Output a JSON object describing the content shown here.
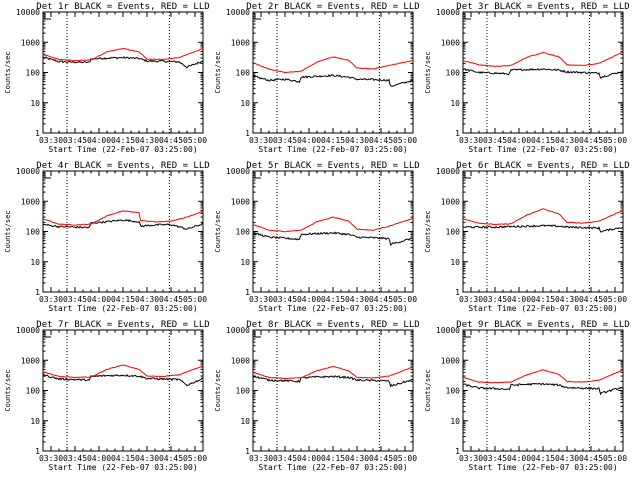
{
  "figure": {
    "background": "#ffffff"
  },
  "chart_data": {
    "type": "line",
    "scale_y": "log",
    "ylim": [
      1,
      10000
    ],
    "yticks": [
      1,
      10,
      100,
      1000,
      10000
    ],
    "ytick_labels": [
      "1",
      "10",
      "100",
      "1000",
      "10000"
    ],
    "xlim": [
      "03:25",
      "05:05"
    ],
    "xticks": [
      "03:30",
      "03:45",
      "04:00",
      "04:15",
      "04:30",
      "04:45",
      "05:00"
    ],
    "xlabel": "Start Time (22-Feb-07 03:25:00)",
    "ylabel": "Counts/sec",
    "vlines": [
      "03:40",
      "04:44"
    ],
    "grid": false,
    "legend_position": "none",
    "series_colors": {
      "events": "#000000",
      "lld": "#ff0000"
    },
    "panels": [
      {
        "title": "Det 1r BLACK = Events, RED = LLD",
        "series": [
          {
            "key": "events",
            "x": [
              "03:25",
              "03:35",
              "03:45",
              "03:54",
              "03:55",
              "04:05",
              "04:15",
              "04:25",
              "04:30",
              "04:40",
              "04:50",
              "04:55",
              "05:05"
            ],
            "y": [
              320,
              230,
              220,
              215,
              280,
              300,
              310,
              290,
              240,
              235,
              225,
              150,
              240
            ]
          },
          {
            "key": "lld",
            "x": [
              "03:25",
              "03:35",
              "03:45",
              "03:55",
              "04:05",
              "04:15",
              "04:25",
              "04:30",
              "04:40",
              "04:50",
              "05:05"
            ],
            "y": [
              400,
              270,
              250,
              260,
              480,
              620,
              480,
              280,
              270,
              310,
              620
            ]
          }
        ]
      },
      {
        "title": "Det 2r BLACK = Events, RED = LLD",
        "series": [
          {
            "key": "events",
            "x": [
              "03:25",
              "03:35",
              "03:45",
              "03:54",
              "03:55",
              "04:05",
              "04:15",
              "04:25",
              "04:30",
              "04:40",
              "04:50",
              "04:51",
              "05:05"
            ],
            "y": [
              75,
              55,
              60,
              50,
              70,
              75,
              80,
              70,
              60,
              58,
              55,
              35,
              55
            ]
          },
          {
            "key": "lld",
            "x": [
              "03:25",
              "03:35",
              "03:45",
              "03:55",
              "04:05",
              "04:15",
              "04:25",
              "04:30",
              "04:40",
              "04:50",
              "05:05"
            ],
            "y": [
              210,
              130,
              100,
              110,
              220,
              330,
              250,
              140,
              130,
              170,
              250
            ]
          }
        ]
      },
      {
        "title": "Det 3r BLACK = Events, RED = LLD",
        "series": [
          {
            "key": "events",
            "x": [
              "03:25",
              "03:35",
              "03:45",
              "03:54",
              "03:55",
              "04:05",
              "04:15",
              "04:25",
              "04:30",
              "04:40",
              "04:50",
              "04:51",
              "05:05"
            ],
            "y": [
              130,
              100,
              95,
              90,
              120,
              125,
              130,
              120,
              105,
              100,
              95,
              70,
              110
            ]
          },
          {
            "key": "lld",
            "x": [
              "03:25",
              "03:35",
              "03:45",
              "03:55",
              "04:05",
              "04:15",
              "04:25",
              "04:30",
              "04:40",
              "04:50",
              "05:05"
            ],
            "y": [
              250,
              180,
              160,
              170,
              320,
              460,
              330,
              180,
              170,
              200,
              480
            ]
          }
        ]
      },
      {
        "title": "Det 4r BLACK = Events, RED = LLD",
        "series": [
          {
            "key": "events",
            "x": [
              "03:25",
              "03:35",
              "03:45",
              "03:54",
              "03:55",
              "04:05",
              "04:15",
              "04:25",
              "04:26",
              "04:35",
              "04:45",
              "04:55",
              "05:05"
            ],
            "y": [
              170,
              145,
              140,
              135,
              190,
              210,
              240,
              210,
              150,
              165,
              170,
              120,
              180
            ]
          },
          {
            "key": "lld",
            "x": [
              "03:25",
              "03:35",
              "03:45",
              "03:55",
              "04:05",
              "04:15",
              "04:25",
              "04:26",
              "04:35",
              "04:45",
              "04:55",
              "05:05"
            ],
            "y": [
              260,
              175,
              165,
              175,
              330,
              480,
              420,
              230,
              210,
              220,
              300,
              470
            ]
          }
        ]
      },
      {
        "title": "Det 5r BLACK = Events, RED = LLD",
        "series": [
          {
            "key": "events",
            "x": [
              "03:25",
              "03:35",
              "03:45",
              "03:54",
              "03:55",
              "04:05",
              "04:15",
              "04:25",
              "04:30",
              "04:40",
              "04:50",
              "04:51",
              "05:05"
            ],
            "y": [
              90,
              65,
              60,
              55,
              80,
              85,
              90,
              80,
              65,
              62,
              58,
              38,
              60
            ]
          },
          {
            "key": "lld",
            "x": [
              "03:25",
              "03:35",
              "03:45",
              "03:55",
              "04:05",
              "04:15",
              "04:25",
              "04:30",
              "04:40",
              "04:50",
              "05:05"
            ],
            "y": [
              170,
              110,
              100,
              110,
              210,
              300,
              220,
              120,
              110,
              150,
              270
            ]
          }
        ]
      },
      {
        "title": "Det 6r BLACK = Events, RED = LLD",
        "series": [
          {
            "key": "events",
            "x": [
              "03:25",
              "03:35",
              "03:45",
              "03:55",
              "04:05",
              "04:15",
              "04:25",
              "04:30",
              "04:40",
              "04:50",
              "04:51",
              "05:05"
            ],
            "y": [
              140,
              140,
              140,
              145,
              150,
              155,
              150,
              140,
              135,
              130,
              100,
              140
            ]
          },
          {
            "key": "lld",
            "x": [
              "03:25",
              "03:35",
              "03:45",
              "03:55",
              "04:05",
              "04:15",
              "04:25",
              "04:30",
              "04:40",
              "04:50",
              "05:05"
            ],
            "y": [
              260,
              190,
              170,
              180,
              350,
              560,
              380,
              200,
              190,
              220,
              500
            ]
          }
        ]
      },
      {
        "title": "Det 7r BLACK = Events, RED = LLD",
        "series": [
          {
            "key": "events",
            "x": [
              "03:25",
              "03:35",
              "03:45",
              "03:54",
              "03:55",
              "04:05",
              "04:15",
              "04:25",
              "04:30",
              "04:40",
              "04:50",
              "04:55",
              "05:05"
            ],
            "y": [
              330,
              240,
              230,
              220,
              290,
              310,
              320,
              300,
              250,
              240,
              230,
              150,
              250
            ]
          },
          {
            "key": "lld",
            "x": [
              "03:25",
              "03:35",
              "03:45",
              "03:55",
              "04:05",
              "04:15",
              "04:25",
              "04:30",
              "04:40",
              "04:50",
              "05:05"
            ],
            "y": [
              420,
              290,
              270,
              280,
              500,
              700,
              500,
              300,
              290,
              330,
              650
            ]
          }
        ]
      },
      {
        "title": "Det 8r BLACK = Events, RED = LLD",
        "series": [
          {
            "key": "events",
            "x": [
              "03:25",
              "03:35",
              "03:45",
              "03:54",
              "03:55",
              "04:05",
              "04:15",
              "04:25",
              "04:30",
              "04:40",
              "04:50",
              "04:51",
              "05:05"
            ],
            "y": [
              300,
              220,
              210,
              200,
              260,
              280,
              290,
              270,
              220,
              215,
              205,
              140,
              230
            ]
          },
          {
            "key": "lld",
            "x": [
              "03:25",
              "03:35",
              "03:45",
              "03:55",
              "04:05",
              "04:15",
              "04:25",
              "04:30",
              "04:40",
              "04:50",
              "05:05"
            ],
            "y": [
              400,
              270,
              250,
              260,
              450,
              620,
              450,
              270,
              260,
              300,
              600
            ]
          }
        ]
      },
      {
        "title": "Det 9r BLACK = Events, RED = LLD",
        "series": [
          {
            "key": "events",
            "x": [
              "03:25",
              "03:35",
              "03:45",
              "03:54",
              "03:55",
              "04:05",
              "04:15",
              "04:25",
              "04:30",
              "04:40",
              "04:50",
              "04:51",
              "05:05"
            ],
            "y": [
              160,
              120,
              115,
              110,
              150,
              160,
              165,
              150,
              125,
              120,
              115,
              80,
              130
            ]
          },
          {
            "key": "lld",
            "x": [
              "03:25",
              "03:35",
              "03:45",
              "03:55",
              "04:05",
              "04:15",
              "04:25",
              "04:30",
              "04:40",
              "04:50",
              "05:05"
            ],
            "y": [
              270,
              190,
              180,
              190,
              330,
              480,
              340,
              200,
              190,
              220,
              480
            ]
          }
        ]
      }
    ]
  }
}
